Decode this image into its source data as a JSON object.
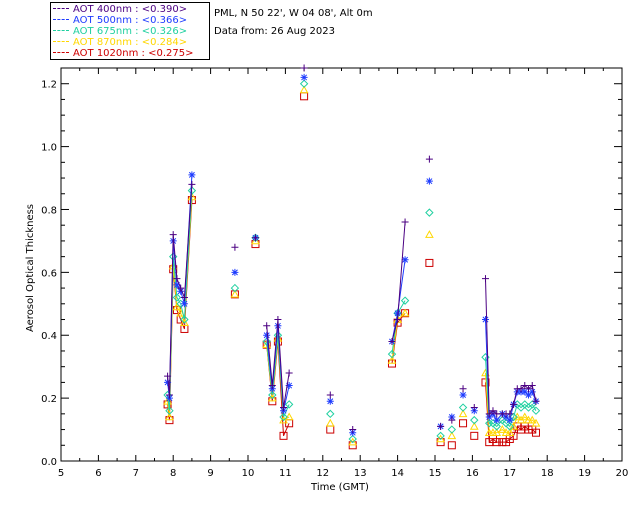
{
  "header": {
    "location": "PML, N 50 22', W 04 08', Alt 0m",
    "date": "Data from: 26 Aug 2023"
  },
  "legend": [
    {
      "label": "AOT  400nm : <0.390>",
      "color": "#4b0082"
    },
    {
      "label": "AOT  500nm : <0.366>",
      "color": "#1e3cff"
    },
    {
      "label": "AOT  675nm : <0.326>",
      "color": "#20d0a0"
    },
    {
      "label": "AOT  870nm : <0.284>",
      "color": "#ffd700"
    },
    {
      "label": "AOT 1020nm : <0.275>",
      "color": "#cc0000"
    }
  ],
  "chart_data": {
    "type": "scatter",
    "title": "",
    "xlabel": "Time (GMT)",
    "ylabel": "Aerosol Optical Thickness",
    "xlim": [
      5,
      20
    ],
    "ylim": [
      0,
      1.25
    ],
    "xticks": [
      "5",
      "6",
      "7",
      "8",
      "9",
      "10",
      "11",
      "12",
      "13",
      "14",
      "15",
      "16",
      "17",
      "18",
      "19",
      "20"
    ],
    "yticks": [
      "0.0",
      "0.2",
      "0.4",
      "0.6",
      "0.8",
      "1.0",
      "1.2"
    ],
    "x": [
      7.85,
      7.9,
      8.0,
      8.1,
      8.2,
      8.3,
      8.5,
      9.65,
      10.2,
      10.5,
      10.65,
      10.8,
      10.95,
      11.1,
      11.5,
      12.2,
      12.8,
      13.85,
      14.0,
      14.2,
      14.85,
      15.15,
      15.45,
      15.75,
      16.05,
      16.35,
      16.45,
      16.55,
      16.65,
      16.8,
      16.9,
      17.0,
      17.1,
      17.2,
      17.3,
      17.4,
      17.5,
      17.6,
      17.7
    ],
    "segments": [
      [
        0,
        6
      ],
      [
        9,
        13
      ],
      [
        17,
        19
      ],
      [
        25,
        38
      ]
    ],
    "series": [
      {
        "name": "400nm",
        "marker": "plus",
        "color": "#4b0082",
        "values": [
          0.27,
          0.21,
          0.72,
          0.58,
          0.55,
          0.52,
          0.88,
          0.68,
          0.71,
          0.43,
          0.24,
          0.45,
          0.17,
          0.28,
          1.25,
          0.21,
          0.1,
          0.38,
          0.45,
          0.76,
          0.96,
          0.11,
          0.13,
          0.23,
          0.17,
          0.58,
          0.15,
          0.16,
          0.15,
          0.15,
          0.15,
          0.15,
          0.18,
          0.23,
          0.23,
          0.24,
          0.23,
          0.24,
          0.19
        ]
      },
      {
        "name": "500nm",
        "marker": "asterisk",
        "color": "#1e3cff",
        "values": [
          0.25,
          0.2,
          0.7,
          0.56,
          0.54,
          0.5,
          0.91,
          0.6,
          0.71,
          0.4,
          0.23,
          0.43,
          0.16,
          0.24,
          1.22,
          0.19,
          0.09,
          0.38,
          0.47,
          0.64,
          0.89,
          0.11,
          0.14,
          0.21,
          0.16,
          0.45,
          0.14,
          0.15,
          0.13,
          0.15,
          0.14,
          0.13,
          0.18,
          0.22,
          0.22,
          0.22,
          0.21,
          0.22,
          0.19
        ]
      },
      {
        "name": "675nm",
        "marker": "diamond",
        "color": "#20d0a0",
        "values": [
          0.21,
          0.16,
          0.65,
          0.52,
          0.5,
          0.45,
          0.86,
          0.55,
          0.71,
          0.38,
          0.21,
          0.4,
          0.14,
          0.18,
          1.2,
          0.15,
          0.07,
          0.34,
          0.47,
          0.51,
          0.79,
          0.08,
          0.1,
          0.17,
          0.13,
          0.33,
          0.12,
          0.12,
          0.11,
          0.13,
          0.12,
          0.11,
          0.14,
          0.18,
          0.17,
          0.18,
          0.17,
          0.18,
          0.16
        ]
      },
      {
        "name": "870nm",
        "marker": "triangle",
        "color": "#ffd700",
        "values": [
          0.19,
          0.14,
          0.62,
          0.49,
          0.47,
          0.44,
          0.84,
          0.53,
          0.7,
          0.37,
          0.2,
          0.39,
          0.13,
          0.14,
          1.18,
          0.12,
          0.06,
          0.32,
          0.45,
          0.47,
          0.72,
          0.07,
          0.08,
          0.15,
          0.11,
          0.28,
          0.09,
          0.09,
          0.09,
          0.1,
          0.09,
          0.09,
          0.11,
          0.14,
          0.13,
          0.14,
          0.13,
          0.13,
          0.12
        ]
      },
      {
        "name": "1020nm",
        "marker": "square",
        "color": "#cc0000",
        "values": [
          0.18,
          0.13,
          0.61,
          0.48,
          0.45,
          0.42,
          0.83,
          0.53,
          0.69,
          0.37,
          0.19,
          0.38,
          0.08,
          0.12,
          1.16,
          0.1,
          0.05,
          0.31,
          0.44,
          0.47,
          0.63,
          0.06,
          0.05,
          0.12,
          0.08,
          0.25,
          0.06,
          0.07,
          0.06,
          0.06,
          0.06,
          0.07,
          0.08,
          0.11,
          0.1,
          0.11,
          0.1,
          0.1,
          0.09
        ]
      }
    ]
  }
}
